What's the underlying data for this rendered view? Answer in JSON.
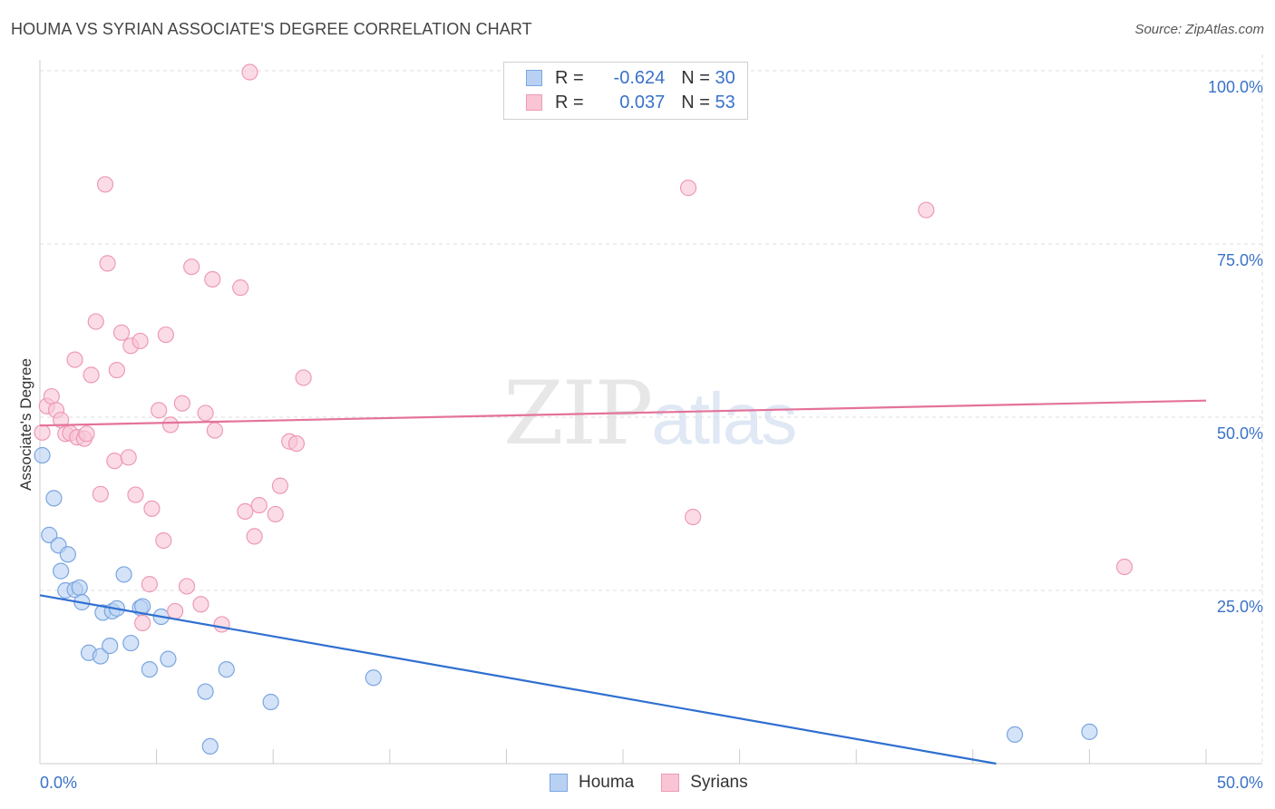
{
  "title": "HOUMA VS SYRIAN ASSOCIATE'S DEGREE CORRELATION CHART",
  "source": "Source: ZipAtlas.com",
  "watermark": {
    "zip": "ZIP",
    "atlas": "atlas"
  },
  "legend": {
    "houma": {
      "r_label": "R =",
      "r_value": "-0.624",
      "n_label": "N =",
      "n_value": "30"
    },
    "syrians": {
      "r_label": "R =",
      "r_value": "0.037",
      "n_label": "N =",
      "n_value": "53"
    }
  },
  "bottom_legend": {
    "houma": "Houma",
    "syrians": "Syrians"
  },
  "colors": {
    "houma_fill": "#b8d1f3",
    "houma_stroke": "#7aa6e0",
    "houma_line": "#2f6fd0",
    "syrians_fill": "#f9c5d5",
    "syrians_stroke": "#ee9ab4",
    "syrians_line": "#e4729b",
    "tick_label": "#3a72c8",
    "grid": "#dddddd"
  },
  "chart_data": {
    "type": "scatter",
    "title": "HOUMA VS SYRIAN ASSOCIATE'S DEGREE CORRELATION CHART",
    "xlabel": "",
    "ylabel": "Associate's Degree",
    "xlim": [
      0,
      50
    ],
    "ylim": [
      0,
      100
    ],
    "x_tick_labels": [
      "0.0%",
      "50.0%"
    ],
    "y_ticks": [
      25,
      50,
      75,
      100
    ],
    "y_tick_labels": [
      "25.0%",
      "50.0%",
      "75.0%",
      "100.0%"
    ],
    "grid": true,
    "series": [
      {
        "name": "Houma",
        "r": -0.624,
        "n": 30,
        "trend": {
          "x": [
            0,
            41
          ],
          "y": [
            24.3,
            0
          ]
        },
        "points": [
          [
            0.1,
            44.5
          ],
          [
            0.4,
            33.0
          ],
          [
            0.6,
            38.3
          ],
          [
            0.8,
            31.5
          ],
          [
            0.9,
            27.8
          ],
          [
            1.1,
            25.0
          ],
          [
            1.2,
            30.2
          ],
          [
            1.5,
            25.1
          ],
          [
            1.7,
            25.4
          ],
          [
            1.8,
            23.3
          ],
          [
            2.1,
            16.0
          ],
          [
            2.6,
            15.5
          ],
          [
            2.7,
            21.8
          ],
          [
            3.0,
            17.0
          ],
          [
            3.1,
            22.0
          ],
          [
            3.3,
            22.4
          ],
          [
            3.6,
            27.3
          ],
          [
            3.9,
            17.4
          ],
          [
            4.3,
            22.5
          ],
          [
            4.4,
            22.7
          ],
          [
            4.7,
            13.6
          ],
          [
            5.2,
            21.2
          ],
          [
            5.5,
            15.1
          ],
          [
            7.1,
            10.4
          ],
          [
            7.3,
            2.5
          ],
          [
            8.0,
            13.6
          ],
          [
            9.9,
            8.9
          ],
          [
            14.3,
            12.4
          ],
          [
            41.8,
            4.2
          ],
          [
            45.0,
            4.6
          ]
        ]
      },
      {
        "name": "Syrians",
        "r": 0.037,
        "n": 53,
        "trend": {
          "x": [
            0,
            50
          ],
          "y": [
            48.8,
            52.4
          ]
        },
        "points": [
          [
            0.1,
            47.8
          ],
          [
            0.3,
            51.6
          ],
          [
            0.5,
            53.0
          ],
          [
            0.7,
            51.0
          ],
          [
            0.9,
            49.6
          ],
          [
            1.1,
            47.6
          ],
          [
            1.3,
            47.7
          ],
          [
            1.5,
            58.3
          ],
          [
            1.6,
            47.1
          ],
          [
            1.9,
            46.9
          ],
          [
            2.0,
            47.6
          ],
          [
            2.2,
            56.1
          ],
          [
            2.4,
            63.8
          ],
          [
            2.6,
            38.9
          ],
          [
            2.8,
            83.6
          ],
          [
            2.9,
            72.2
          ],
          [
            3.2,
            43.7
          ],
          [
            3.3,
            56.8
          ],
          [
            3.5,
            62.2
          ],
          [
            3.8,
            44.2
          ],
          [
            3.9,
            60.3
          ],
          [
            4.1,
            38.8
          ],
          [
            4.3,
            61.0
          ],
          [
            4.4,
            20.3
          ],
          [
            4.7,
            25.9
          ],
          [
            4.8,
            36.8
          ],
          [
            5.1,
            51.0
          ],
          [
            5.3,
            32.2
          ],
          [
            5.4,
            61.9
          ],
          [
            5.6,
            48.9
          ],
          [
            5.8,
            22.0
          ],
          [
            6.1,
            52.0
          ],
          [
            6.3,
            25.6
          ],
          [
            6.5,
            71.7
          ],
          [
            6.9,
            23.0
          ],
          [
            7.1,
            50.6
          ],
          [
            7.4,
            69.9
          ],
          [
            7.5,
            48.1
          ],
          [
            7.8,
            20.1
          ],
          [
            8.6,
            68.7
          ],
          [
            8.8,
            36.4
          ],
          [
            9.0,
            99.8
          ],
          [
            9.2,
            32.8
          ],
          [
            9.4,
            37.3
          ],
          [
            10.1,
            36.0
          ],
          [
            10.3,
            40.1
          ],
          [
            10.7,
            46.5
          ],
          [
            11.0,
            46.2
          ],
          [
            11.3,
            55.7
          ],
          [
            27.8,
            83.1
          ],
          [
            28.0,
            35.6
          ],
          [
            38.0,
            79.9
          ],
          [
            46.5,
            28.4
          ]
        ]
      }
    ]
  }
}
